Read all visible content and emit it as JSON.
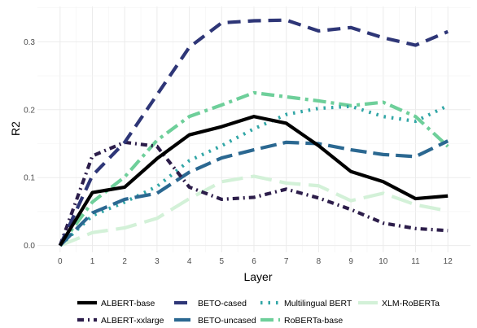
{
  "chart_data": {
    "type": "line",
    "xlabel": "Layer",
    "ylabel": "R2",
    "x": [
      0,
      1,
      2,
      3,
      4,
      5,
      6,
      7,
      8,
      9,
      10,
      11,
      12
    ],
    "xlim": [
      -0.7,
      12.7
    ],
    "ylim": [
      -0.01,
      0.352
    ],
    "y_ticks": [
      0.0,
      0.1,
      0.2,
      0.3
    ],
    "y_tick_labels": [
      "0.0",
      "0.1",
      "0.2",
      "0.3"
    ],
    "x_tick_labels": [
      "0",
      "1",
      "2",
      "3",
      "4",
      "5",
      "6",
      "7",
      "8",
      "9",
      "10",
      "11",
      "12"
    ],
    "grid": true,
    "legend_position": "bottom",
    "series": [
      {
        "name": "ALBERT-base",
        "color": "#000000",
        "dash": "solid",
        "values": [
          0.0,
          0.078,
          0.086,
          0.128,
          0.163,
          0.175,
          0.19,
          0.18,
          0.147,
          0.109,
          0.094,
          0.069,
          0.073
        ]
      },
      {
        "name": "BETO-cased",
        "color": "#2e3677",
        "dash": "dash",
        "values": [
          0.0,
          0.103,
          0.152,
          0.222,
          0.292,
          0.328,
          0.331,
          0.332,
          0.316,
          0.321,
          0.306,
          0.295,
          0.315
        ]
      },
      {
        "name": "Multilingual BERT",
        "color": "#31a6a6",
        "dash": "dot",
        "values": [
          0.0,
          0.044,
          0.064,
          0.087,
          0.125,
          0.147,
          0.172,
          0.193,
          0.202,
          0.205,
          0.19,
          0.183,
          0.206
        ]
      },
      {
        "name": "XLM-RoBERTa",
        "color": "#d3f1d8",
        "dash": "longdash",
        "values": [
          0.0,
          0.019,
          0.026,
          0.04,
          0.069,
          0.094,
          0.102,
          0.092,
          0.088,
          0.066,
          0.077,
          0.06,
          0.051
        ]
      },
      {
        "name": "ALBERT-xxlarge",
        "color": "#2c1d4a",
        "dash": "dashdot",
        "values": [
          0.0,
          0.132,
          0.152,
          0.146,
          0.086,
          0.068,
          0.071,
          0.083,
          0.07,
          0.053,
          0.033,
          0.025,
          0.022
        ]
      },
      {
        "name": "BETO-uncased",
        "color": "#2b6891",
        "dash": "longdash2",
        "values": [
          0.0,
          0.048,
          0.068,
          0.077,
          0.108,
          0.129,
          0.141,
          0.152,
          0.15,
          0.141,
          0.134,
          0.131,
          0.154
        ]
      },
      {
        "name": "RoBERTa-base",
        "color": "#6ecf9a",
        "dash": "twodash",
        "values": [
          0.0,
          0.064,
          0.101,
          0.155,
          0.19,
          0.207,
          0.225,
          0.219,
          0.213,
          0.206,
          0.211,
          0.19,
          0.146
        ]
      }
    ],
    "legend_rows": [
      [
        "ALBERT-base",
        "BETO-cased",
        "Multilingual BERT",
        "XLM-RoBERTa"
      ],
      [
        "ALBERT-xxlarge",
        "BETO-uncased",
        "RoBERTa-base"
      ]
    ]
  }
}
